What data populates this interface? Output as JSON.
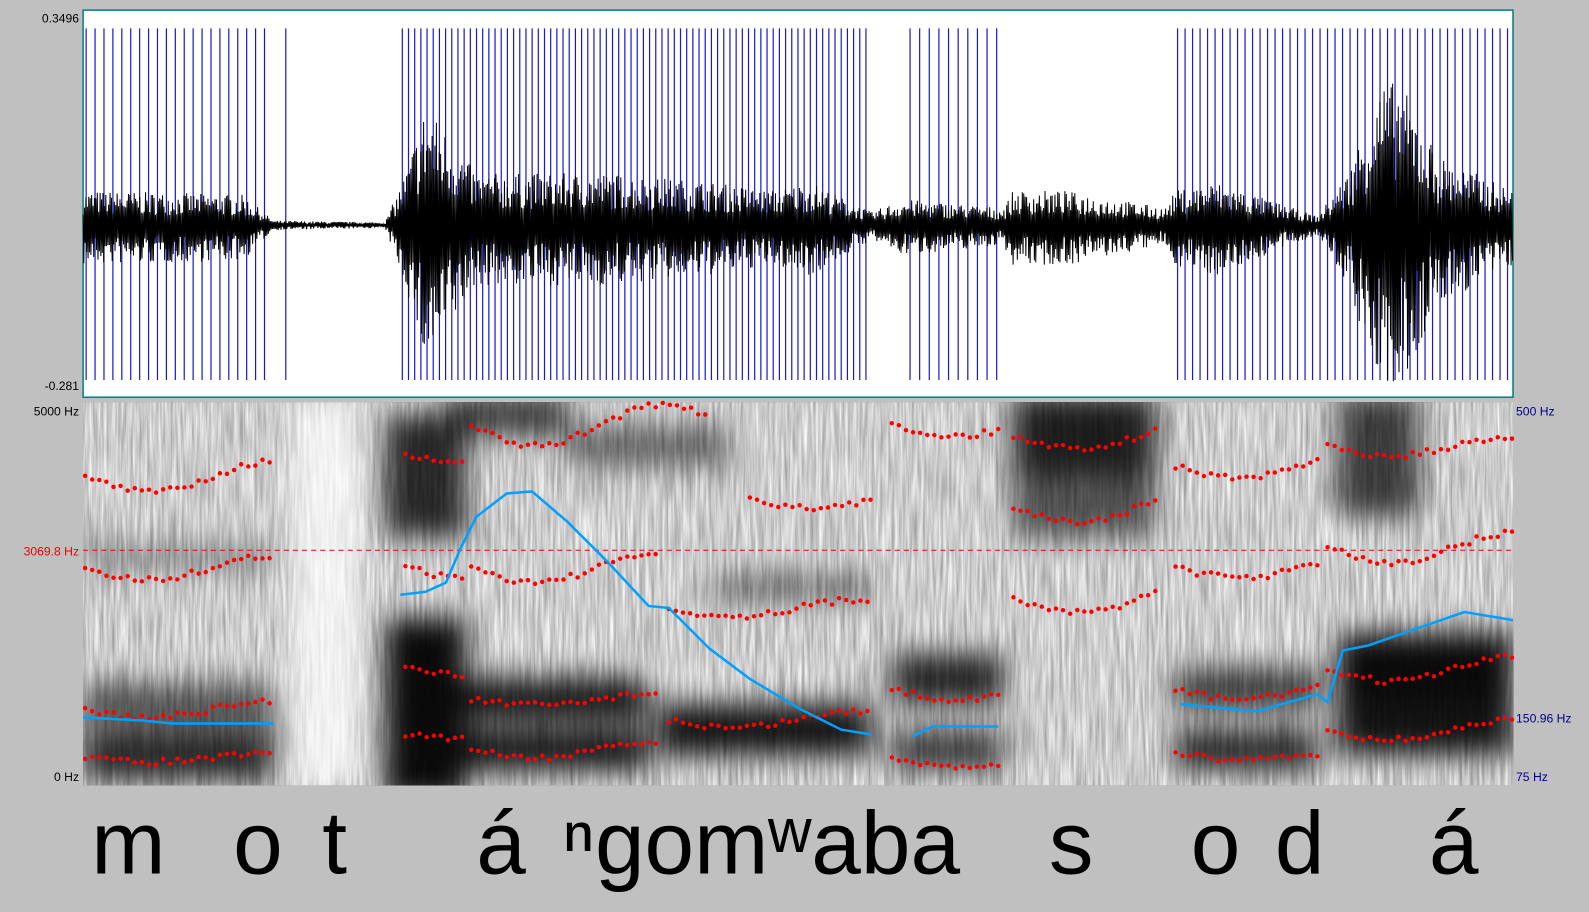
{
  "waveform": {
    "max_label": "0.3496",
    "min_label": "-0.281"
  },
  "spectrogram": {
    "top_label": "5000 Hz",
    "cursor_label": "3069.8 Hz",
    "bottom_label": "0 Hz"
  },
  "pitch": {
    "top_label": "500 Hz",
    "cursor_label": "150.96 Hz",
    "bottom_label": "75 Hz"
  },
  "transcription": {
    "segments": [
      "m",
      "o",
      "t",
      "á",
      "ⁿgomʷaba",
      "s",
      "o",
      "d",
      "á"
    ]
  }
}
